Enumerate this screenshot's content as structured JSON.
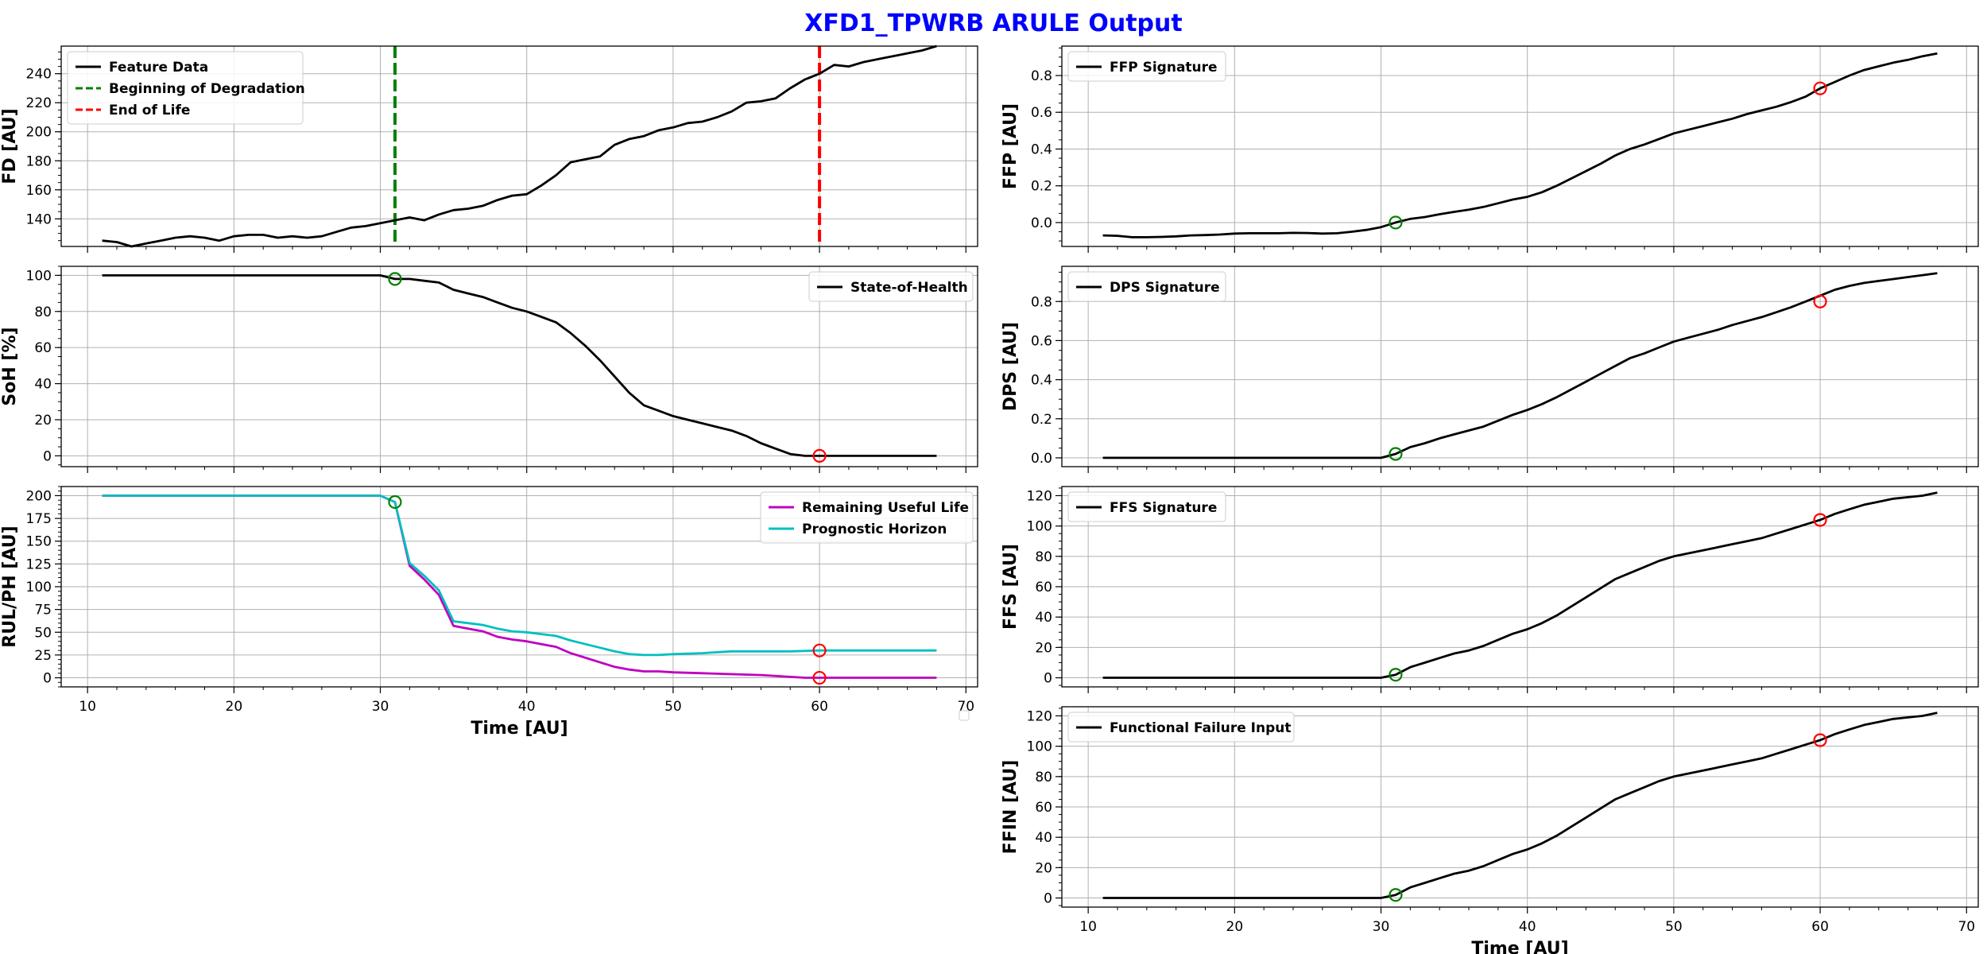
{
  "title": "XFD1_TPWRB ARULE Output",
  "title_color": "#0000ff",
  "chart_data": [
    {
      "id": "fd",
      "type": "line",
      "ylabel": "FD [AU]",
      "xlabel": "",
      "xlim": [
        8.2,
        70.8
      ],
      "ylim": [
        121,
        259
      ],
      "yticks": [
        140,
        160,
        180,
        200,
        220,
        240
      ],
      "xticks": [
        10,
        20,
        30,
        40,
        50,
        60,
        70
      ],
      "grid": true,
      "legend": "top-left",
      "series": [
        {
          "name": "Feature Data",
          "color": "#000000",
          "x": [
            11,
            12,
            13,
            14,
            15,
            16,
            17,
            18,
            19,
            20,
            21,
            22,
            23,
            24,
            25,
            26,
            27,
            28,
            29,
            30,
            31,
            32,
            33,
            34,
            35,
            36,
            37,
            38,
            39,
            40,
            41,
            42,
            43,
            44,
            45,
            46,
            47,
            48,
            49,
            50,
            51,
            52,
            53,
            54,
            55,
            56,
            57,
            58,
            59,
            60,
            61,
            62,
            63,
            64,
            65,
            66,
            67,
            68
          ],
          "y": [
            125,
            124,
            121,
            123,
            125,
            127,
            128,
            127,
            125,
            128,
            129,
            129,
            127,
            128,
            127,
            128,
            131,
            134,
            135,
            137,
            139,
            141,
            139,
            143,
            146,
            147,
            149,
            153,
            156,
            157,
            163,
            170,
            179,
            181,
            183,
            191,
            195,
            197,
            201,
            203,
            206,
            207,
            210,
            214,
            220,
            221,
            223,
            230,
            236,
            240,
            246,
            245,
            248,
            250,
            252,
            254,
            256,
            259
          ]
        }
      ],
      "vlines": [
        {
          "name": "Beginning of Degradation",
          "x": 31,
          "color": "#008000",
          "style": "dashed"
        },
        {
          "name": "End of Life",
          "x": 60,
          "color": "#ff0000",
          "style": "dashed"
        }
      ]
    },
    {
      "id": "soh",
      "type": "line",
      "ylabel": "SoH [%]",
      "xlabel": "",
      "xlim": [
        8.2,
        70.8
      ],
      "ylim": [
        -6,
        105
      ],
      "yticks": [
        0,
        20,
        40,
        60,
        80,
        100
      ],
      "xticks": [
        10,
        20,
        30,
        40,
        50,
        60,
        70
      ],
      "grid": true,
      "legend": "top-right",
      "series": [
        {
          "name": "State-of-Health",
          "color": "#000000",
          "x": [
            11,
            20,
            30,
            31,
            32,
            33,
            34,
            35,
            36,
            37,
            38,
            39,
            40,
            41,
            42,
            43,
            44,
            45,
            46,
            47,
            48,
            49,
            50,
            51,
            52,
            53,
            54,
            55,
            56,
            57,
            58,
            59,
            60,
            61,
            65,
            68
          ],
          "y": [
            100,
            100,
            100,
            98,
            98,
            97,
            96,
            92,
            90,
            88,
            85,
            82,
            80,
            77,
            74,
            68,
            61,
            53,
            44,
            35,
            28,
            25,
            22,
            20,
            18,
            16,
            14,
            11,
            7,
            4,
            1,
            0,
            0,
            0,
            0,
            0
          ]
        }
      ],
      "markers": [
        {
          "x": 31,
          "y": 98,
          "color": "#008000"
        },
        {
          "x": 60,
          "y": 0,
          "color": "#ff0000"
        }
      ]
    },
    {
      "id": "rul",
      "type": "line",
      "ylabel": "RUL/PH [AU]",
      "xlabel": "Time [AU]",
      "xlim": [
        8.2,
        70.8
      ],
      "ylim": [
        -10,
        210
      ],
      "yticks": [
        0,
        25,
        50,
        75,
        100,
        125,
        150,
        175,
        200
      ],
      "xticks": [
        10,
        20,
        30,
        40,
        50,
        60,
        70
      ],
      "xticklabels": [
        "10",
        "20",
        "30",
        "40",
        "50",
        "60",
        "70"
      ],
      "grid": true,
      "legend": "top-right",
      "series": [
        {
          "name": "Remaining Useful Life",
          "color": "#bf00bf",
          "x": [
            11,
            30,
            31,
            32,
            33,
            34,
            35,
            36,
            37,
            38,
            39,
            40,
            41,
            42,
            43,
            44,
            45,
            46,
            47,
            48,
            49,
            50,
            52,
            54,
            56,
            58,
            59,
            60,
            64,
            68
          ],
          "y": [
            200,
            200,
            193,
            123,
            108,
            91,
            57,
            54,
            51,
            45,
            42,
            40,
            37,
            34,
            27,
            22,
            17,
            12,
            9,
            7,
            7,
            6,
            5,
            4,
            3,
            1,
            0,
            0,
            0,
            0
          ]
        },
        {
          "name": "Prognostic Horizon",
          "color": "#00bfbf",
          "x": [
            11,
            30,
            31,
            32,
            33,
            34,
            35,
            36,
            37,
            38,
            39,
            40,
            41,
            42,
            43,
            44,
            45,
            46,
            47,
            48,
            49,
            50,
            52,
            54,
            56,
            58,
            60,
            64,
            68
          ],
          "y": [
            200,
            200,
            193,
            126,
            112,
            96,
            62,
            60,
            58,
            54,
            51,
            50,
            48,
            46,
            41,
            37,
            33,
            29,
            26,
            25,
            25,
            26,
            27,
            29,
            29,
            29,
            30,
            30,
            30
          ]
        }
      ],
      "markers": [
        {
          "x": 31,
          "y": 193,
          "color": "#008000"
        },
        {
          "x": 60,
          "y": 30,
          "color": "#ff0000"
        },
        {
          "x": 60,
          "y": 0,
          "color": "#ff0000"
        }
      ]
    },
    {
      "id": "ffp",
      "type": "line",
      "ylabel": "FFP [AU]",
      "xlabel": "",
      "xlim": [
        8.2,
        70.8
      ],
      "ylim": [
        -0.13,
        0.96
      ],
      "yticks": [
        0.0,
        0.2,
        0.4,
        0.6,
        0.8
      ],
      "yticklabels": [
        "0.0",
        "0.2",
        "0.4",
        "0.6",
        "0.8"
      ],
      "xticks": [
        10,
        20,
        30,
        40,
        50,
        60,
        70
      ],
      "grid": true,
      "legend": "top-left",
      "series": [
        {
          "name": "FFP Signature",
          "color": "#000000",
          "x": [
            11,
            12,
            13,
            14,
            15,
            16,
            17,
            18,
            19,
            20,
            21,
            22,
            23,
            24,
            25,
            26,
            27,
            28,
            29,
            30,
            31,
            32,
            33,
            34,
            35,
            36,
            37,
            38,
            39,
            40,
            41,
            42,
            43,
            44,
            45,
            46,
            47,
            48,
            49,
            50,
            51,
            52,
            53,
            54,
            55,
            56,
            57,
            58,
            59,
            60,
            61,
            62,
            63,
            64,
            65,
            66,
            67,
            68
          ],
          "y": [
            -0.07,
            -0.072,
            -0.08,
            -0.08,
            -0.078,
            -0.075,
            -0.07,
            -0.068,
            -0.065,
            -0.06,
            -0.058,
            -0.058,
            -0.058,
            -0.056,
            -0.057,
            -0.06,
            -0.058,
            -0.05,
            -0.04,
            -0.025,
            0.0,
            0.02,
            0.03,
            0.045,
            0.058,
            0.07,
            0.085,
            0.105,
            0.125,
            0.14,
            0.165,
            0.2,
            0.24,
            0.28,
            0.32,
            0.365,
            0.4,
            0.425,
            0.455,
            0.485,
            0.505,
            0.525,
            0.545,
            0.565,
            0.59,
            0.61,
            0.63,
            0.655,
            0.685,
            0.73,
            0.765,
            0.8,
            0.83,
            0.85,
            0.87,
            0.885,
            0.905,
            0.92
          ]
        }
      ],
      "markers": [
        {
          "x": 31,
          "y": 0.0,
          "color": "#008000"
        },
        {
          "x": 60,
          "y": 0.73,
          "color": "#ff0000"
        }
      ]
    },
    {
      "id": "dps",
      "type": "line",
      "ylabel": "DPS [AU]",
      "xlabel": "",
      "xlim": [
        8.2,
        70.8
      ],
      "ylim": [
        -0.045,
        0.98
      ],
      "yticks": [
        0.0,
        0.2,
        0.4,
        0.6,
        0.8
      ],
      "yticklabels": [
        "0.0",
        "0.2",
        "0.4",
        "0.6",
        "0.8"
      ],
      "xticks": [
        10,
        20,
        30,
        40,
        50,
        60,
        70
      ],
      "grid": true,
      "legend": "top-left",
      "series": [
        {
          "name": "DPS Signature",
          "color": "#000000",
          "x": [
            11,
            20,
            30,
            31,
            32,
            33,
            34,
            35,
            36,
            37,
            38,
            39,
            40,
            41,
            42,
            43,
            44,
            45,
            46,
            47,
            48,
            49,
            50,
            51,
            52,
            53,
            54,
            55,
            56,
            57,
            58,
            59,
            60,
            61,
            62,
            63,
            64,
            65,
            66,
            67,
            68
          ],
          "y": [
            0,
            0,
            0,
            0.02,
            0.055,
            0.075,
            0.1,
            0.12,
            0.14,
            0.16,
            0.19,
            0.22,
            0.245,
            0.275,
            0.31,
            0.35,
            0.39,
            0.43,
            0.47,
            0.51,
            0.535,
            0.565,
            0.595,
            0.615,
            0.635,
            0.655,
            0.68,
            0.7,
            0.72,
            0.745,
            0.77,
            0.8,
            0.83,
            0.86,
            0.88,
            0.895,
            0.905,
            0.915,
            0.925,
            0.935,
            0.945
          ]
        }
      ],
      "markers": [
        {
          "x": 31,
          "y": 0.02,
          "color": "#008000"
        },
        {
          "x": 60,
          "y": 0.8,
          "color": "#ff0000"
        }
      ]
    },
    {
      "id": "ffs",
      "type": "line",
      "ylabel": "FFS [AU]",
      "xlabel": "",
      "xlim": [
        8.2,
        70.8
      ],
      "ylim": [
        -6,
        126
      ],
      "yticks": [
        0,
        20,
        40,
        60,
        80,
        100,
        120
      ],
      "xticks": [
        10,
        20,
        30,
        40,
        50,
        60,
        70
      ],
      "grid": true,
      "legend": "top-left",
      "series": [
        {
          "name": "FFS Signature",
          "color": "#000000",
          "x": [
            11,
            20,
            30,
            31,
            32,
            33,
            34,
            35,
            36,
            37,
            38,
            39,
            40,
            41,
            42,
            43,
            44,
            45,
            46,
            47,
            48,
            49,
            50,
            51,
            52,
            53,
            54,
            55,
            56,
            57,
            58,
            59,
            60,
            61,
            62,
            63,
            64,
            65,
            66,
            67,
            68
          ],
          "y": [
            0,
            0,
            0,
            2,
            7,
            10,
            13,
            16,
            18,
            21,
            25,
            29,
            32,
            36,
            41,
            47,
            53,
            59,
            65,
            69,
            73,
            77,
            80,
            82,
            84,
            86,
            88,
            90,
            92,
            95,
            98,
            101,
            104,
            108,
            111,
            114,
            116,
            118,
            119,
            120,
            122
          ]
        }
      ],
      "markers": [
        {
          "x": 31,
          "y": 2,
          "color": "#008000"
        },
        {
          "x": 60,
          "y": 104,
          "color": "#ff0000"
        }
      ]
    },
    {
      "id": "ffin",
      "type": "line",
      "ylabel": "FFIN [AU]",
      "xlabel": "Time [AU]",
      "xlim": [
        8.2,
        70.8
      ],
      "ylim": [
        -6,
        126
      ],
      "yticks": [
        0,
        20,
        40,
        60,
        80,
        100,
        120
      ],
      "xticks": [
        10,
        20,
        30,
        40,
        50,
        60,
        70
      ],
      "xticklabels": [
        "10",
        "20",
        "30",
        "40",
        "50",
        "60",
        "70"
      ],
      "grid": true,
      "legend": "top-left",
      "series": [
        {
          "name": "Functional Failure Input",
          "color": "#000000",
          "x": [
            11,
            20,
            30,
            31,
            32,
            33,
            34,
            35,
            36,
            37,
            38,
            39,
            40,
            41,
            42,
            43,
            44,
            45,
            46,
            47,
            48,
            49,
            50,
            51,
            52,
            53,
            54,
            55,
            56,
            57,
            58,
            59,
            60,
            61,
            62,
            63,
            64,
            65,
            66,
            67,
            68
          ],
          "y": [
            0,
            0,
            0,
            2,
            7,
            10,
            13,
            16,
            18,
            21,
            25,
            29,
            32,
            36,
            41,
            47,
            53,
            59,
            65,
            69,
            73,
            77,
            80,
            82,
            84,
            86,
            88,
            90,
            92,
            95,
            98,
            101,
            104,
            108,
            111,
            114,
            116,
            118,
            119,
            120,
            122
          ]
        }
      ],
      "markers": [
        {
          "x": 31,
          "y": 2,
          "color": "#008000"
        },
        {
          "x": 60,
          "y": 104,
          "color": "#ff0000"
        }
      ]
    }
  ]
}
